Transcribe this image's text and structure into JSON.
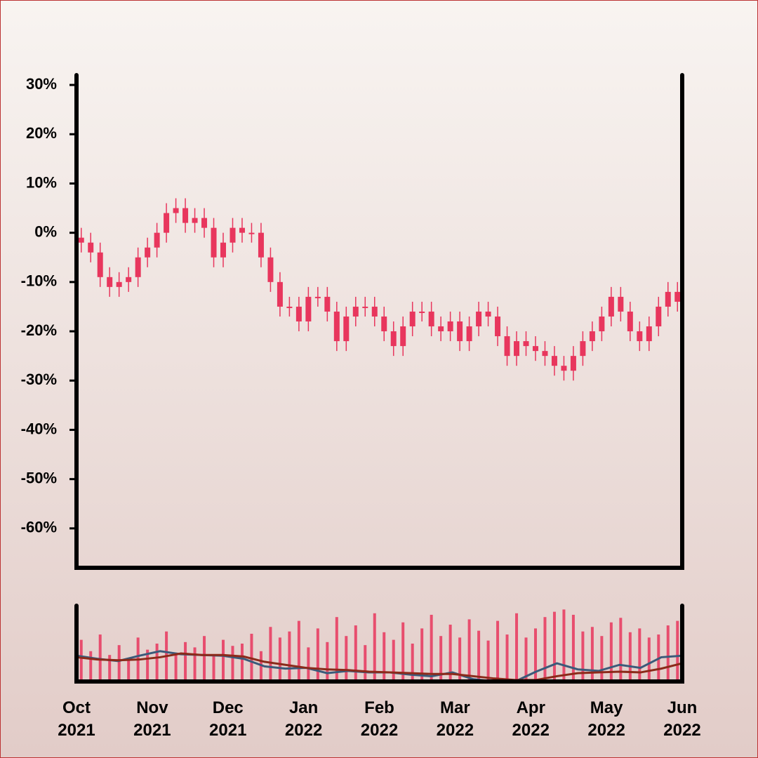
{
  "chart_data": {
    "type": "candlestick",
    "up_color": "#e8365d",
    "down_color": "#e8365d",
    "open": [
      -1,
      -2,
      -4,
      -9,
      -11,
      -10,
      -9,
      -5,
      -3,
      0,
      4,
      5,
      2,
      3,
      1,
      -5,
      -2,
      1,
      0,
      0,
      -5,
      -10,
      -15,
      -15,
      -18,
      -13,
      -13,
      -16,
      -22,
      -17,
      -15,
      -15,
      -17,
      -20,
      -23,
      -19,
      -16,
      -16,
      -19,
      -20,
      -18,
      -22,
      -19,
      -16,
      -17,
      -21,
      -25,
      -22,
      -23,
      -24,
      -25,
      -27,
      -28,
      -25,
      -22,
      -20,
      -17,
      -13,
      -16,
      -20,
      -22,
      -19,
      -15,
      -12
    ],
    "high": [
      1,
      0,
      -2,
      -7,
      -8,
      -7,
      -3,
      -1,
      2,
      6,
      7,
      7,
      5,
      5,
      3,
      0,
      3,
      3,
      2,
      2,
      -3,
      -8,
      -13,
      -13,
      -11,
      -11,
      -11,
      -14,
      -15,
      -13,
      -13,
      -13,
      -15,
      -18,
      -17,
      -14,
      -14,
      -14,
      -17,
      -16,
      -16,
      -17,
      -14,
      -14,
      -15,
      -19,
      -20,
      -20,
      -21,
      -22,
      -23,
      -25,
      -23,
      -20,
      -18,
      -15,
      -11,
      -11,
      -14,
      -18,
      -17,
      -13,
      -10,
      -10
    ],
    "low": [
      -4,
      -6,
      -11,
      -13,
      -13,
      -12,
      -11,
      -7,
      -5,
      -2,
      2,
      0,
      0,
      -1,
      -7,
      -7,
      -4,
      -2,
      -2,
      -7,
      -12,
      -17,
      -17,
      -20,
      -20,
      -15,
      -18,
      -24,
      -24,
      -19,
      -17,
      -19,
      -22,
      -25,
      -25,
      -21,
      -18,
      -21,
      -22,
      -22,
      -24,
      -24,
      -21,
      -19,
      -23,
      -27,
      -27,
      -25,
      -26,
      -27,
      -29,
      -30,
      -30,
      -27,
      -24,
      -22,
      -19,
      -18,
      -22,
      -24,
      -24,
      -21,
      -17,
      -16
    ],
    "close": [
      -2,
      -4,
      -9,
      -11,
      -10,
      -9,
      -5,
      -3,
      0,
      4,
      5,
      2,
      3,
      1,
      -5,
      -2,
      1,
      0,
      0,
      -5,
      -10,
      -15,
      -15,
      -18,
      -13,
      -13,
      -16,
      -22,
      -17,
      -15,
      -15,
      -17,
      -20,
      -23,
      -19,
      -16,
      -16,
      -19,
      -20,
      -18,
      -22,
      -19,
      -16,
      -17,
      -21,
      -25,
      -22,
      -23,
      -24,
      -25,
      -27,
      -28,
      -25,
      -22,
      -20,
      -17,
      -13,
      -16,
      -20,
      -22,
      -19,
      -15,
      -12,
      -14
    ],
    "ylim": [
      -68,
      32
    ],
    "yticks": [
      {
        "value": 30,
        "label": "30%"
      },
      {
        "value": 20,
        "label": "20%"
      },
      {
        "value": 10,
        "label": "10%"
      },
      {
        "value": 0,
        "label": "0%"
      },
      {
        "value": -10,
        "label": "-10%"
      },
      {
        "value": -20,
        "label": "-20%"
      },
      {
        "value": -30,
        "label": "-30%"
      },
      {
        "value": -40,
        "label": "-40%"
      },
      {
        "value": -50,
        "label": "-50%"
      },
      {
        "value": -60,
        "label": "-60%"
      }
    ],
    "xtick_labels": [
      "Oct 2021",
      "Nov 2021",
      "Dec 2021",
      "Jan 2022",
      "Feb 2022",
      "Mar 2022",
      "Apr 2022",
      "May 2022",
      "Jun 2022"
    ],
    "volume": {
      "color": "#e8365d",
      "ylim": [
        0,
        100
      ],
      "values": [
        55,
        40,
        62,
        35,
        48,
        30,
        58,
        42,
        50,
        66,
        38,
        52,
        45,
        60,
        35,
        55,
        47,
        50,
        63,
        40,
        72,
        58,
        66,
        80,
        45,
        70,
        52,
        85,
        60,
        74,
        48,
        90,
        65,
        55,
        78,
        50,
        70,
        88,
        60,
        75,
        58,
        82,
        67,
        54,
        80,
        62,
        90,
        58,
        70,
        85,
        92,
        95,
        88,
        66,
        72,
        60,
        78,
        84,
        65,
        70,
        58,
        62,
        74,
        80
      ],
      "lines": [
        {
          "color": "#3b5a7a",
          "values": [
            34,
            30,
            27,
            34,
            40,
            36,
            35,
            34,
            30,
            20,
            17,
            18,
            11,
            14,
            12,
            12,
            9,
            7,
            12,
            3,
            0,
            0,
            13,
            24,
            16,
            14,
            22,
            18,
            32,
            34
          ]
        },
        {
          "color": "#8b2a1a",
          "values": [
            32,
            29,
            28,
            29,
            32,
            37,
            35,
            35,
            33,
            26,
            22,
            18,
            16,
            15,
            13,
            12,
            11,
            10,
            10,
            7,
            4,
            2,
            2,
            7,
            11,
            12,
            13,
            12,
            17,
            24
          ]
        }
      ]
    }
  }
}
